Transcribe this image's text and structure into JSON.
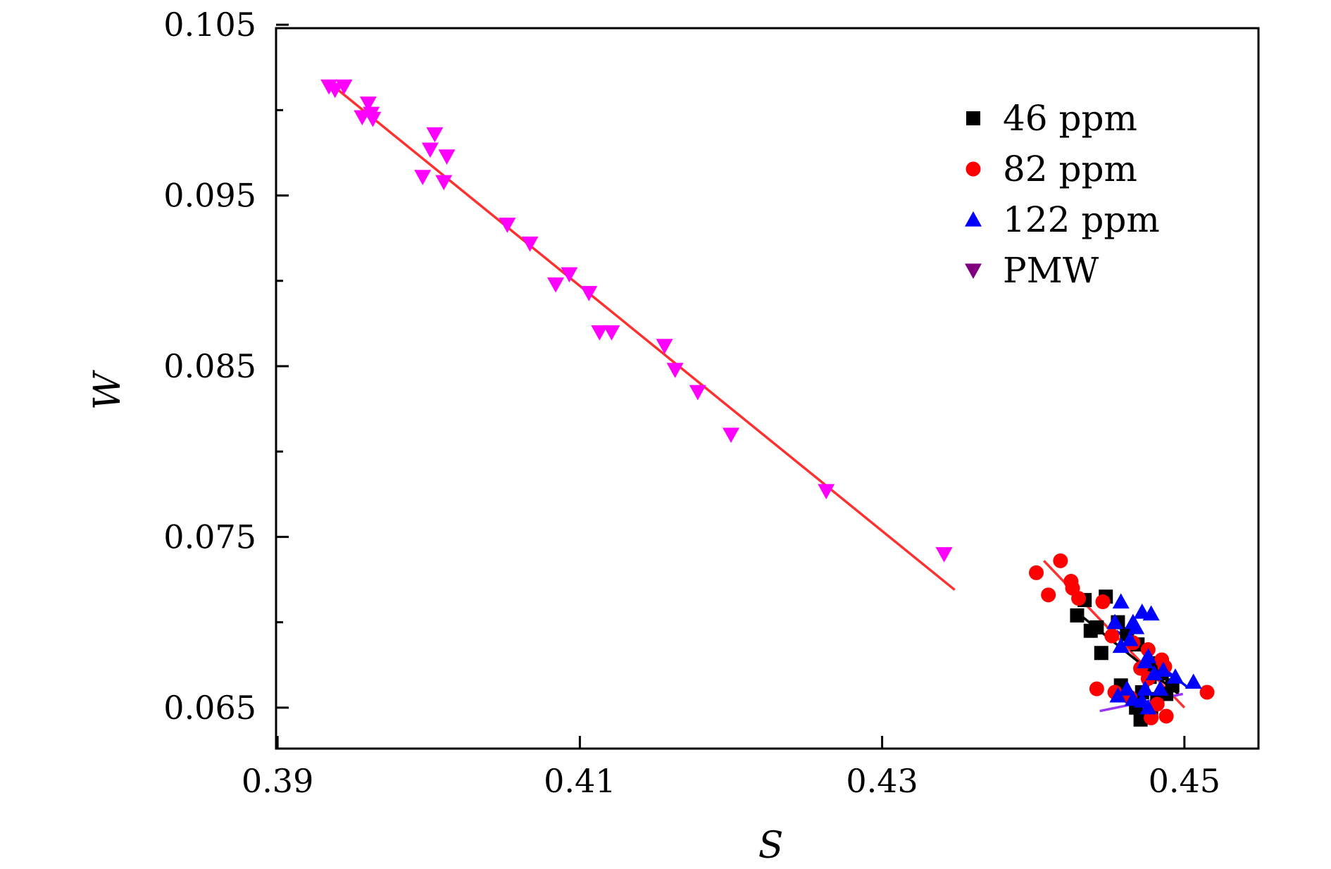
{
  "chart_data": {
    "type": "scatter",
    "title": "",
    "xlabel": "S",
    "ylabel": "W",
    "xlim": [
      0.3899,
      0.4549
    ],
    "ylim": [
      0.0626,
      0.1048
    ],
    "x_ticks": [
      0.39,
      0.41,
      0.43,
      0.45
    ],
    "x_tick_labels": [
      "0.39",
      "0.41",
      "0.43",
      "0.45"
    ],
    "y_ticks": [
      0.065,
      0.075,
      0.085,
      0.095,
      0.105
    ],
    "y_tick_labels": [
      "0.065",
      "0.075",
      "0.085",
      "0.095",
      "0.105"
    ],
    "y_minor_ticks": [
      0.07,
      0.08,
      0.09,
      0.1
    ],
    "grid": false,
    "legend_position": "top-right",
    "legend": [
      {
        "name": "46 ppm",
        "marker": "square",
        "color": "#000000"
      },
      {
        "name": "82 ppm",
        "marker": "circle",
        "color": "#ff0000"
      },
      {
        "name": "122 ppm",
        "marker": "triangle-up",
        "color": "#0000ff"
      },
      {
        "name": "PMW",
        "marker": "triangle-down",
        "color": "#800080"
      }
    ],
    "series": [
      {
        "name": "46 ppm",
        "marker": "square",
        "color": "#000000",
        "points": [
          [
            0.4434,
            0.0713
          ],
          [
            0.4448,
            0.0715
          ],
          [
            0.4429,
            0.0704
          ],
          [
            0.4442,
            0.0697
          ],
          [
            0.4438,
            0.0695
          ],
          [
            0.4445,
            0.0682
          ],
          [
            0.4456,
            0.07
          ],
          [
            0.4462,
            0.0693
          ],
          [
            0.4469,
            0.0687
          ],
          [
            0.4481,
            0.0676
          ],
          [
            0.4477,
            0.0668
          ],
          [
            0.4485,
            0.067
          ],
          [
            0.4492,
            0.0663
          ],
          [
            0.4458,
            0.0663
          ],
          [
            0.4472,
            0.0659
          ],
          [
            0.4482,
            0.0655
          ],
          [
            0.4488,
            0.0658
          ],
          [
            0.4468,
            0.065
          ],
          [
            0.4478,
            0.0648
          ],
          [
            0.4471,
            0.0643
          ]
        ]
      },
      {
        "name": "82 ppm",
        "marker": "circle",
        "color": "#ff0000",
        "points": [
          [
            0.4402,
            0.0729
          ],
          [
            0.4418,
            0.0736
          ],
          [
            0.4425,
            0.0724
          ],
          [
            0.4426,
            0.072
          ],
          [
            0.441,
            0.0716
          ],
          [
            0.443,
            0.0714
          ],
          [
            0.4446,
            0.0712
          ],
          [
            0.4452,
            0.0692
          ],
          [
            0.4466,
            0.0688
          ],
          [
            0.4476,
            0.0684
          ],
          [
            0.4471,
            0.0673
          ],
          [
            0.4485,
            0.0678
          ],
          [
            0.4487,
            0.0674
          ],
          [
            0.4476,
            0.0667
          ],
          [
            0.4442,
            0.0661
          ],
          [
            0.4454,
            0.0659
          ],
          [
            0.4464,
            0.0656
          ],
          [
            0.4482,
            0.0652
          ],
          [
            0.4478,
            0.0644
          ],
          [
            0.4488,
            0.0645
          ],
          [
            0.4515,
            0.0659
          ]
        ]
      },
      {
        "name": "122 ppm",
        "marker": "triangle-up",
        "color": "#0000ff",
        "points": [
          [
            0.4458,
            0.0712
          ],
          [
            0.4472,
            0.0706
          ],
          [
            0.4478,
            0.0705
          ],
          [
            0.4454,
            0.07
          ],
          [
            0.4466,
            0.07
          ],
          [
            0.4468,
            0.0697
          ],
          [
            0.4464,
            0.069
          ],
          [
            0.4458,
            0.0686
          ],
          [
            0.4476,
            0.068
          ],
          [
            0.4474,
            0.0677
          ],
          [
            0.4486,
            0.0672
          ],
          [
            0.448,
            0.067
          ],
          [
            0.4494,
            0.0668
          ],
          [
            0.4506,
            0.0665
          ],
          [
            0.4462,
            0.0661
          ],
          [
            0.4474,
            0.0661
          ],
          [
            0.4484,
            0.0661
          ],
          [
            0.4456,
            0.0657
          ],
          [
            0.4466,
            0.0655
          ],
          [
            0.4472,
            0.0654
          ],
          [
            0.4476,
            0.065
          ]
        ]
      },
      {
        "name": "PMW",
        "marker": "triangle-down",
        "color": "#ff00ff",
        "points": [
          [
            0.3934,
            0.1014
          ],
          [
            0.3944,
            0.1014
          ],
          [
            0.3938,
            0.1012
          ],
          [
            0.396,
            0.1004
          ],
          [
            0.3962,
            0.0998
          ],
          [
            0.3956,
            0.0996
          ],
          [
            0.3963,
            0.0995
          ],
          [
            0.4004,
            0.0986
          ],
          [
            0.4001,
            0.0977
          ],
          [
            0.4012,
            0.0973
          ],
          [
            0.3996,
            0.0961
          ],
          [
            0.401,
            0.0958
          ],
          [
            0.4052,
            0.0933
          ],
          [
            0.4067,
            0.0922
          ],
          [
            0.4084,
            0.0898
          ],
          [
            0.4093,
            0.0904
          ],
          [
            0.4106,
            0.0893
          ],
          [
            0.4113,
            0.087
          ],
          [
            0.4121,
            0.087
          ],
          [
            0.4156,
            0.0862
          ],
          [
            0.4163,
            0.0848
          ],
          [
            0.4178,
            0.0835
          ],
          [
            0.42,
            0.081
          ],
          [
            0.4263,
            0.0777
          ],
          [
            0.4341,
            0.074
          ]
        ]
      }
    ],
    "fit_lines": [
      {
        "name": "PMW fit",
        "color": "#ff3030",
        "x": [
          0.3937,
          0.4348
        ],
        "y": [
          0.1014,
          0.0719
        ]
      },
      {
        "name": "82 ppm fit",
        "color": "#ff3030",
        "x": [
          0.4407,
          0.45
        ],
        "y": [
          0.0736,
          0.065
        ]
      },
      {
        "name": "122 ppm fit",
        "color": "#0000ff",
        "x": [
          0.4455,
          0.4502
        ],
        "y": [
          0.0695,
          0.0662
        ]
      },
      {
        "name": "46 ppm fit",
        "color": "#000000",
        "x": [
          0.443,
          0.4496
        ],
        "y": [
          0.0705,
          0.0658
        ]
      },
      {
        "name": "PMW-ref fit",
        "color": "#9933ff",
        "x": [
          0.4444,
          0.4499
        ],
        "y": [
          0.0648,
          0.0658
        ]
      }
    ]
  }
}
